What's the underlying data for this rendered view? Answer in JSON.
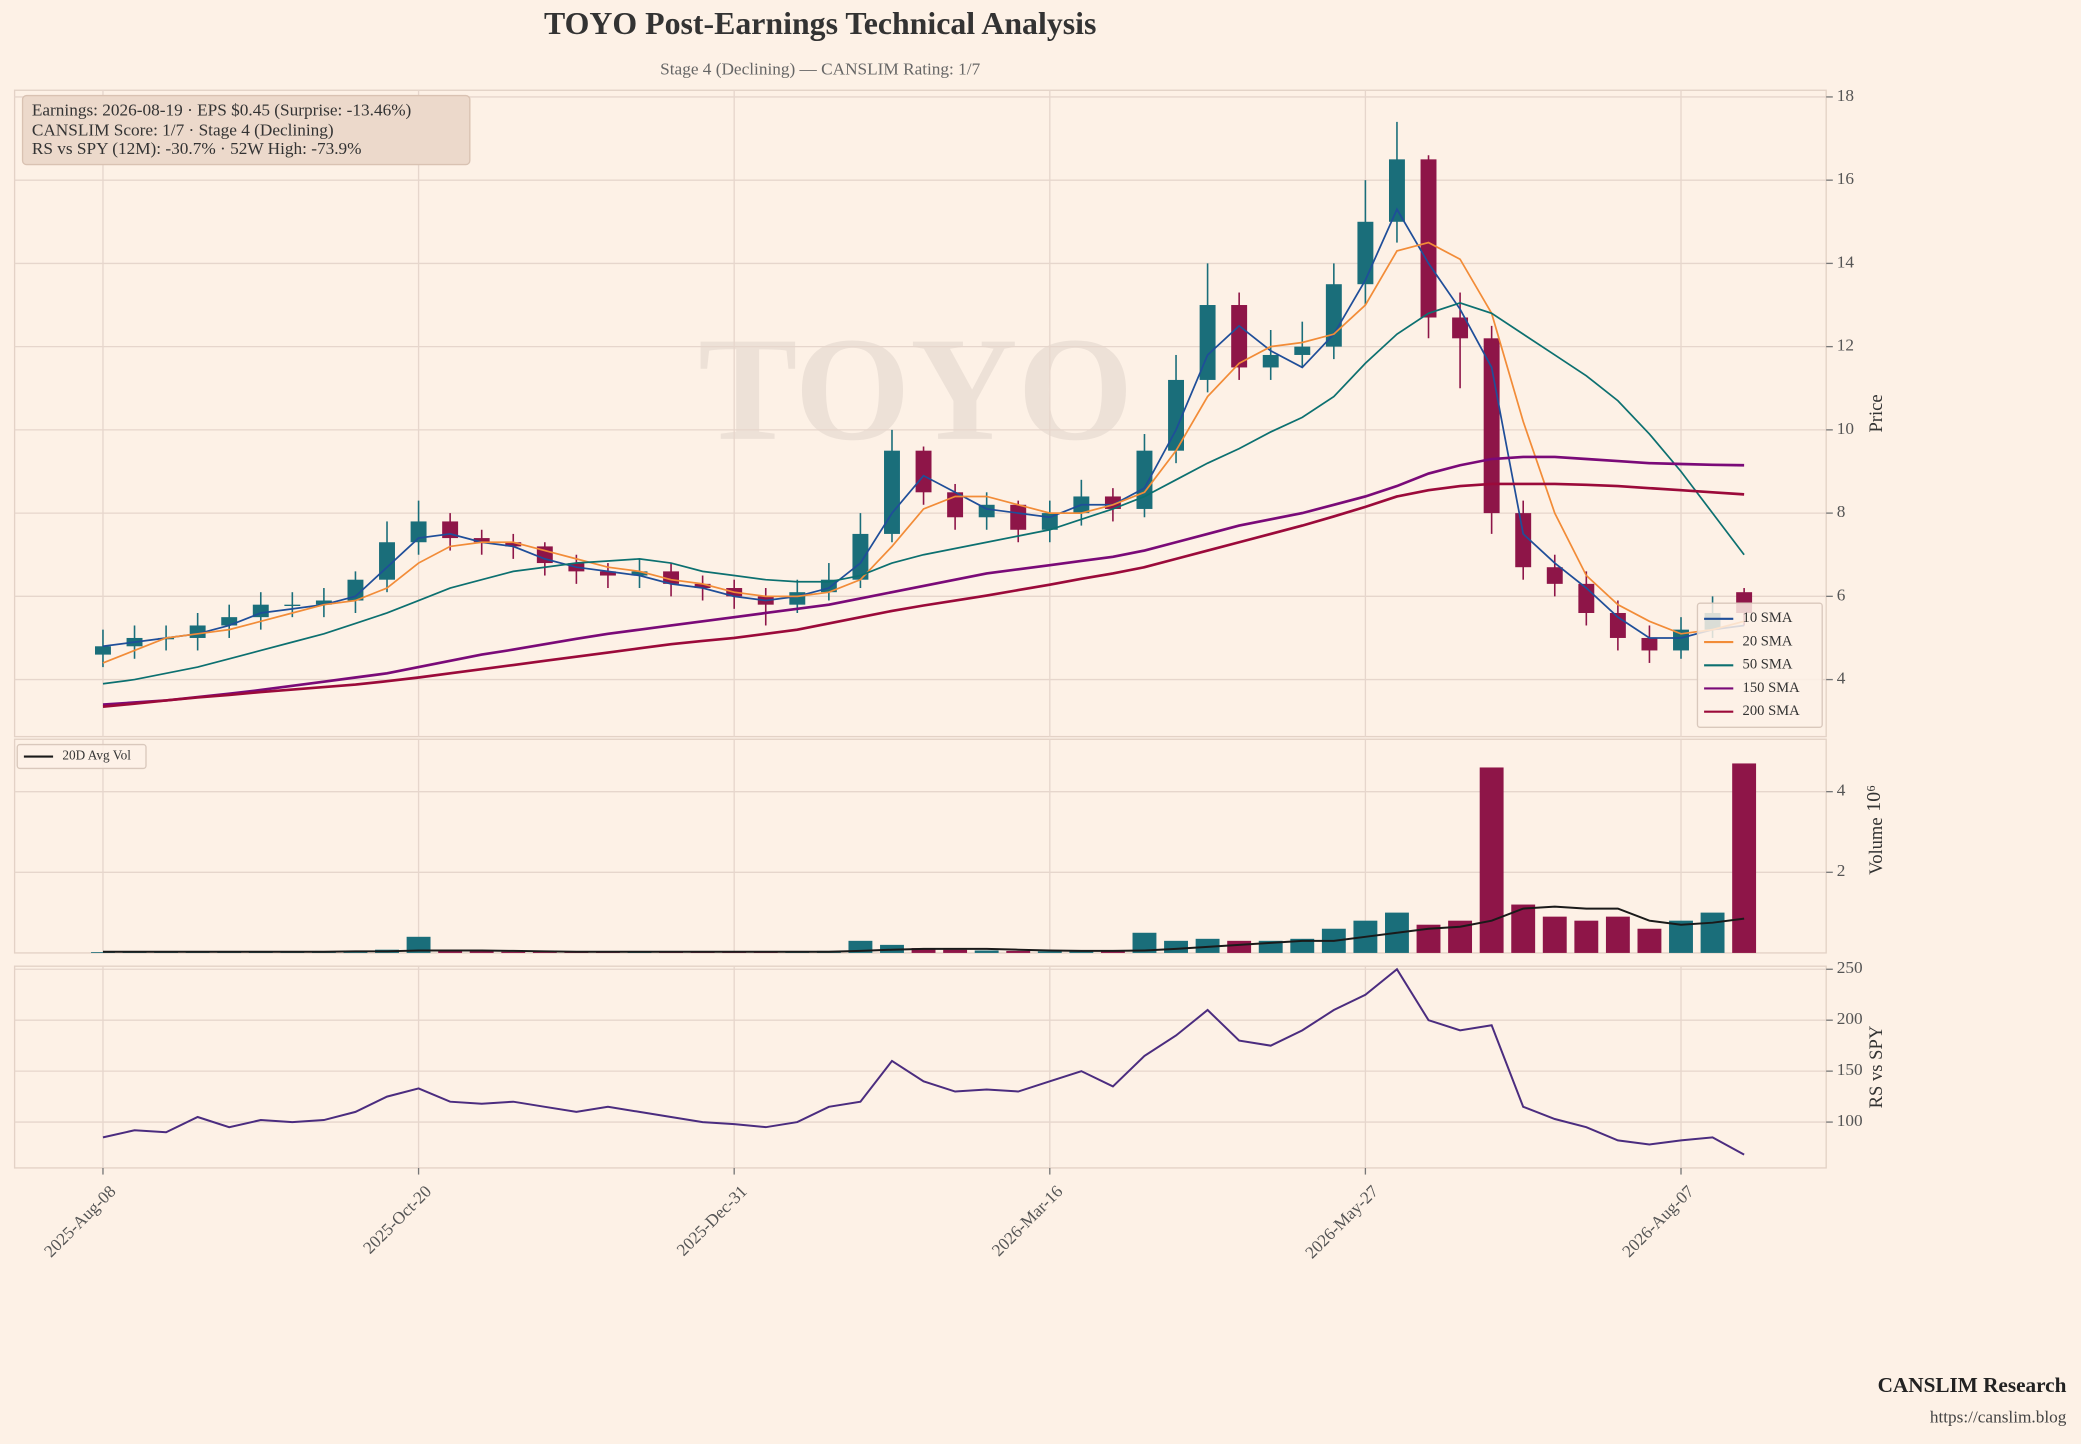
{
  "title": "TOYO Post-Earnings Technical Analysis",
  "subtitle": "Stage 4 (Declining) — CANSLIM Rating: 1/7",
  "annotation": [
    "Earnings: 2026-08-19 · EPS $0.45 (Surprise: -13.46%)",
    "CANSLIM Score: 1/7 · Stage 4 (Declining)",
    "RS vs SPY (12M): -30.7% · 52W High: -73.9%"
  ],
  "watermark": "TOYO",
  "footer": {
    "brand": "CANSLIM Research",
    "url": "https://canslim.blog"
  },
  "chart_data": [
    {
      "type": "candlestick",
      "ylabel": "Price",
      "grid": true,
      "legend": "lower right",
      "up_color": "#1a6e7a",
      "down_color": "#8e1548",
      "xlim": [
        -14,
        273
      ],
      "ylim": [
        2.63,
        18.16
      ],
      "yticks": [
        4,
        6,
        8,
        10,
        12,
        14,
        16,
        18
      ],
      "x": [
        0,
        5,
        10,
        15,
        20,
        25,
        30,
        35,
        40,
        45,
        50,
        55,
        60,
        65,
        70,
        75,
        80,
        85,
        90,
        95,
        100,
        105,
        110,
        115,
        120,
        125,
        130,
        135,
        140,
        145,
        150,
        155,
        160,
        165,
        170,
        175,
        180,
        185,
        190,
        195,
        200,
        205,
        210,
        215,
        220,
        225,
        230,
        235,
        240,
        245,
        250,
        255,
        260
      ],
      "open": [
        4.6,
        4.8,
        5.0,
        5.0,
        5.3,
        5.5,
        5.8,
        5.8,
        5.9,
        6.4,
        7.3,
        7.8,
        7.4,
        7.3,
        7.2,
        6.8,
        6.6,
        6.5,
        6.6,
        6.3,
        6.2,
        6.0,
        5.8,
        6.1,
        6.4,
        7.5,
        9.5,
        8.5,
        7.9,
        8.2,
        7.6,
        8.0,
        8.4,
        8.1,
        9.5,
        11.2,
        13.0,
        11.5,
        11.8,
        12.0,
        13.5,
        15.0,
        16.5,
        12.7,
        12.2,
        8.0,
        6.7,
        6.3,
        5.6,
        5.0,
        4.7,
        5.2,
        6.1
      ],
      "high": [
        5.2,
        5.3,
        5.3,
        5.6,
        5.8,
        6.1,
        6.1,
        6.2,
        6.6,
        7.8,
        8.3,
        8.0,
        7.6,
        7.5,
        7.3,
        7.0,
        6.8,
        6.9,
        6.8,
        6.5,
        6.4,
        6.2,
        6.4,
        6.8,
        8.0,
        10.0,
        9.6,
        8.7,
        8.5,
        8.3,
        8.3,
        8.8,
        8.6,
        9.9,
        11.8,
        14.0,
        13.3,
        12.4,
        12.6,
        14.0,
        16.0,
        17.4,
        16.6,
        13.3,
        12.5,
        8.3,
        7.0,
        6.6,
        5.9,
        5.3,
        5.5,
        6.0,
        6.2
      ],
      "low": [
        4.3,
        4.5,
        4.7,
        4.7,
        5.0,
        5.2,
        5.5,
        5.5,
        5.6,
        6.1,
        7.0,
        7.1,
        7.0,
        6.9,
        6.5,
        6.3,
        6.2,
        6.2,
        6.0,
        5.9,
        5.7,
        5.3,
        5.6,
        5.9,
        6.2,
        7.3,
        8.2,
        7.6,
        7.6,
        7.3,
        7.3,
        7.7,
        7.8,
        7.9,
        9.2,
        10.9,
        11.2,
        11.2,
        11.5,
        11.7,
        13.0,
        14.5,
        12.2,
        11.0,
        7.5,
        6.4,
        6.0,
        5.3,
        4.7,
        4.4,
        4.5,
        5.0,
        5.3
      ],
      "close": [
        4.8,
        5.0,
        5.0,
        5.3,
        5.5,
        5.8,
        5.8,
        5.9,
        6.4,
        7.3,
        7.8,
        7.4,
        7.3,
        7.2,
        6.8,
        6.6,
        6.5,
        6.6,
        6.3,
        6.2,
        6.0,
        5.8,
        6.1,
        6.4,
        7.5,
        9.5,
        8.5,
        7.9,
        8.2,
        7.6,
        8.0,
        8.4,
        8.1,
        9.5,
        11.2,
        13.0,
        11.5,
        11.8,
        12.0,
        13.5,
        15.0,
        16.5,
        12.7,
        12.2,
        8.0,
        6.7,
        6.3,
        5.6,
        5.0,
        4.7,
        5.2,
        5.6,
        5.6
      ],
      "series": [
        {
          "name": "10 SMA",
          "color": "#1f4e99",
          "values": [
            4.8,
            4.9,
            5.0,
            5.1,
            5.3,
            5.6,
            5.7,
            5.8,
            6.0,
            6.7,
            7.4,
            7.5,
            7.3,
            7.2,
            6.9,
            6.7,
            6.6,
            6.5,
            6.3,
            6.2,
            6.0,
            5.9,
            6.0,
            6.2,
            6.8,
            8.0,
            8.9,
            8.5,
            8.1,
            8.0,
            7.9,
            8.2,
            8.2,
            8.6,
            10.0,
            11.8,
            12.5,
            11.9,
            11.5,
            12.3,
            13.6,
            15.3,
            14.0,
            12.9,
            11.5,
            7.5,
            6.8,
            6.2,
            5.5,
            5.0,
            5.0,
            5.2,
            5.3
          ]
        },
        {
          "name": "20 SMA",
          "color": "#f28c38",
          "values": [
            4.4,
            4.7,
            5.0,
            5.1,
            5.2,
            5.4,
            5.6,
            5.8,
            5.9,
            6.2,
            6.8,
            7.2,
            7.3,
            7.3,
            7.1,
            6.9,
            6.7,
            6.6,
            6.4,
            6.3,
            6.1,
            6.0,
            6.0,
            6.1,
            6.4,
            7.2,
            8.1,
            8.4,
            8.4,
            8.2,
            8.0,
            8.0,
            8.2,
            8.5,
            9.5,
            10.8,
            11.6,
            12.0,
            12.1,
            12.3,
            13.0,
            14.3,
            14.5,
            14.1,
            12.8,
            10.2,
            8.0,
            6.5,
            5.8,
            5.4,
            5.1,
            5.2,
            5.4
          ]
        },
        {
          "name": "50 SMA",
          "color": "#0c7070",
          "values": [
            3.9,
            4.0,
            4.15,
            4.3,
            4.5,
            4.7,
            4.9,
            5.1,
            5.35,
            5.6,
            5.9,
            6.2,
            6.4,
            6.6,
            6.7,
            6.8,
            6.85,
            6.9,
            6.8,
            6.6,
            6.5,
            6.4,
            6.35,
            6.35,
            6.5,
            6.8,
            7.0,
            7.15,
            7.3,
            7.45,
            7.6,
            7.85,
            8.1,
            8.4,
            8.8,
            9.2,
            9.55,
            9.95,
            10.3,
            10.8,
            11.6,
            12.3,
            12.8,
            13.05,
            12.8,
            12.3,
            11.8,
            11.3,
            10.7,
            9.9,
            9.0,
            8.0,
            7.0
          ]
        },
        {
          "name": "150 SMA",
          "color": "#7a0a78",
          "values": [
            3.4,
            3.45,
            3.5,
            3.58,
            3.66,
            3.75,
            3.85,
            3.95,
            4.05,
            4.15,
            4.3,
            4.45,
            4.6,
            4.72,
            4.85,
            4.98,
            5.1,
            5.2,
            5.3,
            5.4,
            5.5,
            5.6,
            5.7,
            5.8,
            5.95,
            6.1,
            6.25,
            6.4,
            6.55,
            6.65,
            6.75,
            6.85,
            6.95,
            7.1,
            7.3,
            7.5,
            7.7,
            7.85,
            8.0,
            8.2,
            8.4,
            8.65,
            8.95,
            9.15,
            9.3,
            9.35,
            9.35,
            9.3,
            9.25,
            9.2,
            9.18,
            9.16,
            9.15
          ]
        },
        {
          "name": "200 SMA",
          "color": "#9b0a3a",
          "values": [
            3.35,
            3.42,
            3.5,
            3.57,
            3.63,
            3.7,
            3.76,
            3.82,
            3.88,
            3.96,
            4.05,
            4.15,
            4.25,
            4.35,
            4.45,
            4.55,
            4.65,
            4.75,
            4.85,
            4.93,
            5.0,
            5.1,
            5.2,
            5.35,
            5.5,
            5.65,
            5.78,
            5.9,
            6.02,
            6.15,
            6.28,
            6.42,
            6.55,
            6.7,
            6.9,
            7.1,
            7.3,
            7.5,
            7.7,
            7.92,
            8.15,
            8.4,
            8.55,
            8.65,
            8.7,
            8.7,
            8.7,
            8.68,
            8.65,
            8.6,
            8.55,
            8.5,
            8.45
          ]
        }
      ]
    },
    {
      "type": "bar",
      "ylabel": "Volume",
      "offset_label": "10⁶",
      "grid": true,
      "legend": "upper left",
      "ylim": [
        0,
        5.3
      ],
      "yticks": [
        2,
        4
      ],
      "values": [
        0.02,
        0.03,
        0.02,
        0.03,
        0.04,
        0.03,
        0.02,
        0.03,
        0.05,
        0.08,
        0.4,
        0.05,
        0.04,
        0.03,
        0.04,
        0.03,
        0.03,
        0.02,
        0.02,
        0.03,
        0.03,
        0.02,
        0.03,
        0.05,
        0.3,
        0.2,
        0.12,
        0.08,
        0.06,
        0.05,
        0.04,
        0.05,
        0.04,
        0.5,
        0.3,
        0.35,
        0.3,
        0.3,
        0.35,
        0.6,
        0.8,
        1.0,
        0.7,
        0.8,
        4.6,
        1.2,
        0.9,
        0.8,
        0.9,
        0.6,
        0.8,
        1.0,
        4.7
      ],
      "series": [
        {
          "name": "20D Avg Vol",
          "color": "#1a1a1a",
          "values": [
            0.03,
            0.03,
            0.03,
            0.03,
            0.03,
            0.03,
            0.03,
            0.03,
            0.04,
            0.04,
            0.06,
            0.06,
            0.06,
            0.05,
            0.04,
            0.03,
            0.03,
            0.03,
            0.03,
            0.03,
            0.03,
            0.03,
            0.03,
            0.03,
            0.05,
            0.08,
            0.1,
            0.1,
            0.1,
            0.08,
            0.06,
            0.05,
            0.05,
            0.06,
            0.1,
            0.15,
            0.2,
            0.25,
            0.3,
            0.3,
            0.4,
            0.5,
            0.6,
            0.65,
            0.8,
            1.1,
            1.15,
            1.1,
            1.1,
            0.8,
            0.7,
            0.75,
            0.85
          ]
        }
      ]
    },
    {
      "type": "line",
      "ylabel": "RS vs SPY",
      "grid": true,
      "color": "#4b2c7f",
      "ylim": [
        55,
        253
      ],
      "yticks": [
        100,
        150,
        200,
        250
      ],
      "xticks": [
        {
          "value": 0,
          "label": "2025-Aug-08"
        },
        {
          "value": 50,
          "label": "2025-Oct-20"
        },
        {
          "value": 100,
          "label": "2025-Dec-31"
        },
        {
          "value": 150,
          "label": "2026-Mar-16"
        },
        {
          "value": 200,
          "label": "2026-May-27"
        },
        {
          "value": 250,
          "label": "2026-Aug-07"
        }
      ],
      "values": [
        85,
        92,
        90,
        105,
        95,
        102,
        100,
        102,
        110,
        125,
        133,
        120,
        118,
        120,
        115,
        110,
        115,
        110,
        105,
        100,
        98,
        95,
        100,
        115,
        120,
        160,
        140,
        130,
        132,
        130,
        140,
        150,
        135,
        165,
        185,
        210,
        180,
        175,
        190,
        210,
        225,
        250,
        200,
        190,
        195,
        115,
        103,
        95,
        82,
        78,
        82,
        85,
        68
      ]
    }
  ]
}
